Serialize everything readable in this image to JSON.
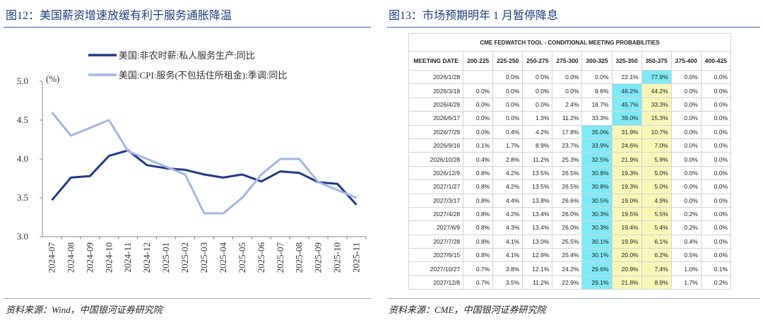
{
  "chart_data": {
    "type": "line",
    "title": "图12：美国薪资增速放缓有利于服务通胀降温",
    "unit_label": "(%)",
    "categories": [
      "2024-07",
      "2024-08",
      "2024-09",
      "2024-10",
      "2024-11",
      "2024-12",
      "2025-01",
      "2025-02",
      "2025-03",
      "2025-04",
      "2025-05",
      "2025-06",
      "2025-07",
      "2025-08",
      "2025-09",
      "2025-10",
      "2025-11"
    ],
    "series": [
      {
        "name": "美国:非农时薪:私人服务生产:同比",
        "color": "#1d3a8a",
        "values": [
          3.47,
          3.76,
          3.78,
          4.04,
          4.11,
          3.92,
          3.88,
          3.86,
          3.8,
          3.76,
          3.8,
          3.71,
          3.84,
          3.82,
          3.7,
          3.68,
          3.41
        ]
      },
      {
        "name": "美国:CPI:服务(不包括住所租金):季调:同比",
        "color": "#a3b6e3",
        "values": [
          4.6,
          4.3,
          4.4,
          4.5,
          4.1,
          4.0,
          3.9,
          3.8,
          3.3,
          3.3,
          3.5,
          3.8,
          4.0,
          4.0,
          3.7,
          3.6,
          3.5
        ]
      }
    ],
    "ylim": [
      3.0,
      5.0
    ],
    "yticks": [
      {
        "value": 3,
        "label": "3.0"
      },
      {
        "value": 3.5,
        "label": "3.5"
      },
      {
        "value": 4,
        "label": "4.0"
      },
      {
        "value": 4.5,
        "label": "4.5"
      },
      {
        "value": 5,
        "label": "5.0"
      }
    ],
    "grid": false,
    "source": "资料来源：Wind，中国银河证券研究院"
  },
  "table_panel": {
    "title": "图13：市场预期明年 1 月暂停降息",
    "table_title": "CME FEDWATCH TOOL - CONDITIONAL MEETING PROBABILITIES",
    "headers": [
      "MEETING DATE",
      "200-225",
      "225-250",
      "250-275",
      "275-300",
      "300-325",
      "325-350",
      "350-375",
      "375-400",
      "400-425"
    ],
    "rows": [
      [
        "2026/1/28",
        null,
        "0.0%",
        "0.0%",
        "0.0%",
        "0.0%",
        "22.1%",
        "77.9%",
        "0.0%",
        "0.0%"
      ],
      [
        "2026/3/18",
        "0.0%",
        "0.0%",
        "0.0%",
        "0.0%",
        "9.6%",
        "46.2%",
        "44.2%",
        "0.0%",
        "0.0%"
      ],
      [
        "2026/4/29",
        "0.0%",
        "0.0%",
        "0.0%",
        "2.4%",
        "18.7%",
        "45.7%",
        "33.3%",
        "0.0%",
        "0.0%"
      ],
      [
        "2026/6/17",
        "0.0%",
        "0.0%",
        "1.3%",
        "11.2%",
        "33.3%",
        "39.0%",
        "15.3%",
        "0.0%",
        "0.0%"
      ],
      [
        "2026/7/29",
        "0.0%",
        "0.4%",
        "4.2%",
        "17.8%",
        "35.0%",
        "31.9%",
        "10.7%",
        "0.0%",
        "0.0%"
      ],
      [
        "2026/9/16",
        "0.1%",
        "1.7%",
        "8.9%",
        "23.7%",
        "33.9%",
        "24.6%",
        "7.0%",
        "0.0%",
        "0.0%"
      ],
      [
        "2026/10/28",
        "0.4%",
        "2.8%",
        "11.2%",
        "25.3%",
        "32.5%",
        "21.9%",
        "5.9%",
        "0.0%",
        "0.0%"
      ],
      [
        "2026/12/9",
        "0.8%",
        "4.2%",
        "13.5%",
        "26.5%",
        "30.8%",
        "19.3%",
        "5.0%",
        "0.0%",
        "0.0%"
      ],
      [
        "2027/1/27",
        "0.8%",
        "4.2%",
        "13.5%",
        "26.5%",
        "30.8%",
        "19.3%",
        "5.0%",
        "0.0%",
        "0.0%"
      ],
      [
        "2027/3/17",
        "0.8%",
        "4.4%",
        "13.8%",
        "26.6%",
        "30.5%",
        "19.0%",
        "4.9%",
        "0.0%",
        "0.0%"
      ],
      [
        "2027/4/28",
        "0.8%",
        "4.2%",
        "13.4%",
        "26.0%",
        "30.3%",
        "19.5%",
        "5.5%",
        "0.2%",
        "0.0%"
      ],
      [
        "2027/6/9",
        "0.8%",
        "4.3%",
        "13.4%",
        "26.0%",
        "30.3%",
        "19.4%",
        "5.4%",
        "0.2%",
        "0.0%"
      ],
      [
        "2027/7/28",
        "0.8%",
        "4.1%",
        "13.0%",
        "25.5%",
        "30.1%",
        "19.9%",
        "6.1%",
        "0.4%",
        "0.0%"
      ],
      [
        "2027/9/15",
        "0.8%",
        "4.1%",
        "12.9%",
        "25.4%",
        "30.1%",
        "20.0%",
        "6.2%",
        "0.5%",
        "0.0%"
      ],
      [
        "2027/10/27",
        "0.7%",
        "3.8%",
        "12.1%",
        "24.2%",
        "29.6%",
        "20.9%",
        "7.4%",
        "1.0%",
        "0.1%"
      ],
      [
        "2027/12/8",
        "0.7%",
        "3.5%",
        "11.2%",
        "22.9%",
        "29.1%",
        "21.8%",
        "8.9%",
        "1.7%",
        "0.2%"
      ]
    ],
    "source": "资料来源：CME，中国银河证券研究院"
  }
}
